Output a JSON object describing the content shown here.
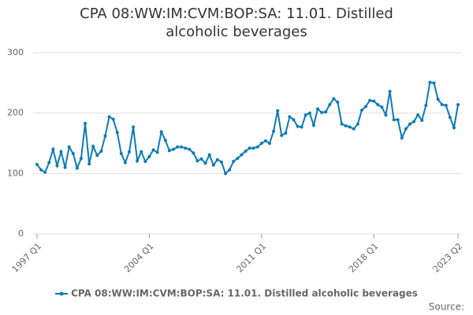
{
  "chart_data": {
    "type": "line",
    "title": "CPA 08:WW:IM:CVM:BOP:SA: 11.01. Distilled alcoholic beverages",
    "source": "Source:",
    "categories": [
      "1997 Q1",
      null,
      null,
      null,
      null,
      null,
      null,
      null,
      null,
      null,
      null,
      null,
      null,
      null,
      null,
      null,
      null,
      null,
      null,
      null,
      null,
      null,
      null,
      null,
      null,
      null,
      null,
      null,
      "2004 Q1",
      null,
      null,
      null,
      null,
      null,
      null,
      null,
      null,
      null,
      null,
      null,
      null,
      null,
      null,
      null,
      null,
      null,
      null,
      null,
      null,
      null,
      null,
      null,
      null,
      null,
      null,
      null,
      "2011 Q1",
      null,
      null,
      null,
      null,
      null,
      null,
      null,
      null,
      null,
      null,
      null,
      null,
      null,
      null,
      null,
      null,
      null,
      null,
      null,
      null,
      null,
      null,
      null,
      null,
      null,
      null,
      null,
      "2018 Q1",
      null,
      null,
      null,
      null,
      null,
      null,
      null,
      null,
      null,
      null,
      null,
      null,
      null,
      null,
      null,
      null,
      null,
      null,
      null,
      null,
      "2023 Q2"
    ],
    "series": [
      {
        "name": "CPA 08:WW:IM:CVM:BOP:SA: 11.01. Distilled alcoholic beverages",
        "color": "#0e7bb6",
        "values": [
          115,
          106,
          102,
          118,
          140,
          113,
          136,
          110,
          144,
          133,
          109,
          125,
          183,
          116,
          145,
          130,
          137,
          162,
          194,
          190,
          168,
          133,
          118,
          136,
          177,
          121,
          136,
          120,
          128,
          139,
          135,
          169,
          155,
          138,
          140,
          144,
          144,
          142,
          140,
          134,
          121,
          124,
          117,
          131,
          114,
          123,
          119,
          100,
          106,
          120,
          125,
          131,
          137,
          142,
          142,
          144,
          150,
          154,
          150,
          170,
          204,
          163,
          167,
          194,
          189,
          178,
          177,
          197,
          200,
          180,
          207,
          201,
          202,
          214,
          224,
          218,
          182,
          179,
          177,
          174,
          182,
          205,
          211,
          221,
          220,
          214,
          210,
          197,
          236,
          189,
          189,
          159,
          174,
          182,
          186,
          197,
          188,
          213,
          251,
          250,
          223,
          214,
          213,
          193,
          176,
          214
        ]
      }
    ],
    "ylim": [
      0,
      300
    ],
    "yticks": [
      0,
      100,
      200,
      300
    ],
    "grid": true
  }
}
